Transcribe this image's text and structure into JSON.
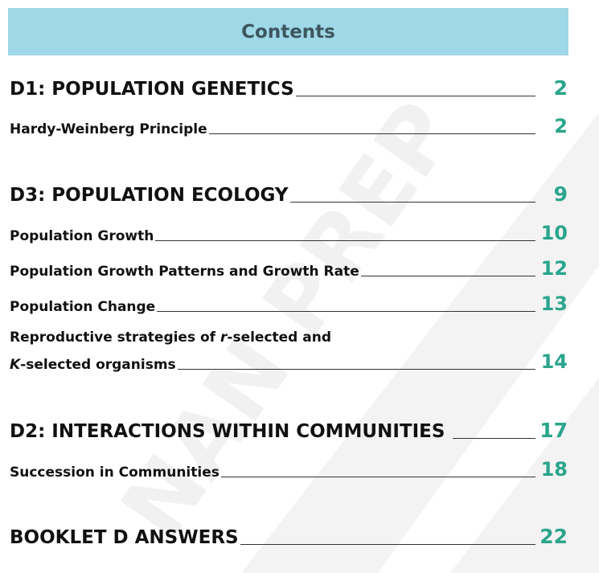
{
  "header": {
    "title": "Contents"
  },
  "entries": [
    {
      "label": "D1: POPULATION GENETICS",
      "page": "2"
    },
    {
      "label": "Hardy-Weinberg Principle",
      "page": "2"
    },
    {
      "label": "D3: POPULATION ECOLOGY",
      "page": "9"
    },
    {
      "label": "Population Growth",
      "page": "10"
    },
    {
      "label": "Population Growth Patterns and Growth Rate",
      "page": "12"
    },
    {
      "label": "Population Change",
      "page": "13"
    },
    {
      "label_line1_a": "Reproductive strategies of ",
      "label_line1_b": "r",
      "label_line1_c": "-selected and",
      "label_line2_a": "K",
      "label_line2_b": "-selected organisms",
      "page": "14"
    },
    {
      "label": "D2: INTERACTIONS WITHIN COMMUNITIES",
      "page": "17"
    },
    {
      "label": "Succession in Communities",
      "page": "18"
    },
    {
      "label": "BOOKLET D ANSWERS",
      "page": "22"
    }
  ],
  "watermark": {
    "text": "NAN PREP",
    "color": "#f1f1f1"
  }
}
